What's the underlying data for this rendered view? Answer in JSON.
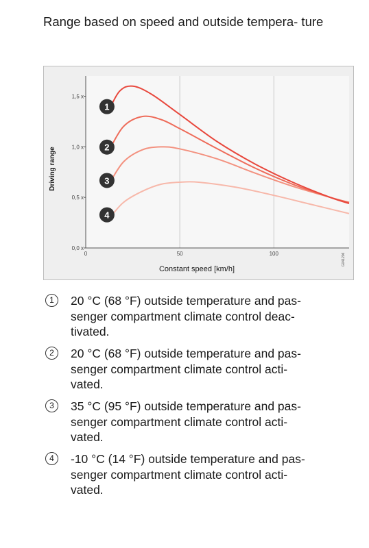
{
  "page": {
    "heading": "Range based on speed and outside tempera-\nture"
  },
  "chart_data": {
    "type": "line",
    "xlabel": "Constant speed [km/h]",
    "ylabel": "Driving range",
    "xlim": [
      0,
      140
    ],
    "ylim": [
      0,
      1.7
    ],
    "x_ticks": [
      0,
      50,
      100
    ],
    "x_tick_labels": [
      "0",
      "50",
      "100"
    ],
    "y_ticks": [
      0,
      0.5,
      1.0,
      1.5
    ],
    "y_tick_labels": [
      "0,0 x",
      "0,5 x",
      "1,0 x",
      "1,5 x"
    ],
    "grid": true,
    "side_code": "G041206",
    "series": [
      {
        "name": "1",
        "color": "#e8473c",
        "x": [
          12,
          18,
          25,
          35,
          50,
          70,
          90,
          110,
          130,
          140
        ],
        "y": [
          1.35,
          1.55,
          1.6,
          1.52,
          1.32,
          1.05,
          0.83,
          0.65,
          0.5,
          0.44
        ]
      },
      {
        "name": "2",
        "color": "#ee6b59",
        "x": [
          12,
          20,
          30,
          40,
          50,
          70,
          90,
          110,
          130,
          140
        ],
        "y": [
          0.95,
          1.2,
          1.3,
          1.27,
          1.18,
          0.98,
          0.79,
          0.63,
          0.5,
          0.45
        ]
      },
      {
        "name": "3",
        "color": "#f3917f",
        "x": [
          12,
          20,
          30,
          40,
          50,
          70,
          90,
          110,
          130,
          140
        ],
        "y": [
          0.62,
          0.85,
          0.97,
          1.0,
          0.98,
          0.88,
          0.74,
          0.61,
          0.5,
          0.45
        ]
      },
      {
        "name": "4",
        "color": "#f7b8aa",
        "x": [
          12,
          20,
          30,
          40,
          50,
          60,
          80,
          100,
          120,
          140
        ],
        "y": [
          0.28,
          0.45,
          0.56,
          0.63,
          0.65,
          0.65,
          0.6,
          0.52,
          0.43,
          0.34
        ]
      }
    ]
  },
  "legend": {
    "items": [
      {
        "num": "1",
        "text": "20 °C (68 °F) outside temperature and pas-\nsenger compartment climate control deac-\ntivated."
      },
      {
        "num": "2",
        "text": "20 °C (68 °F) outside temperature and pas-\nsenger compartment climate control acti-\nvated."
      },
      {
        "num": "3",
        "text": "35 °C (95 °F) outside temperature and pas-\nsenger compartment climate control acti-\nvated."
      },
      {
        "num": "4",
        "text": "-10 °C (14 °F) outside temperature and pas-\nsenger compartment climate control acti-\nvated."
      }
    ]
  }
}
